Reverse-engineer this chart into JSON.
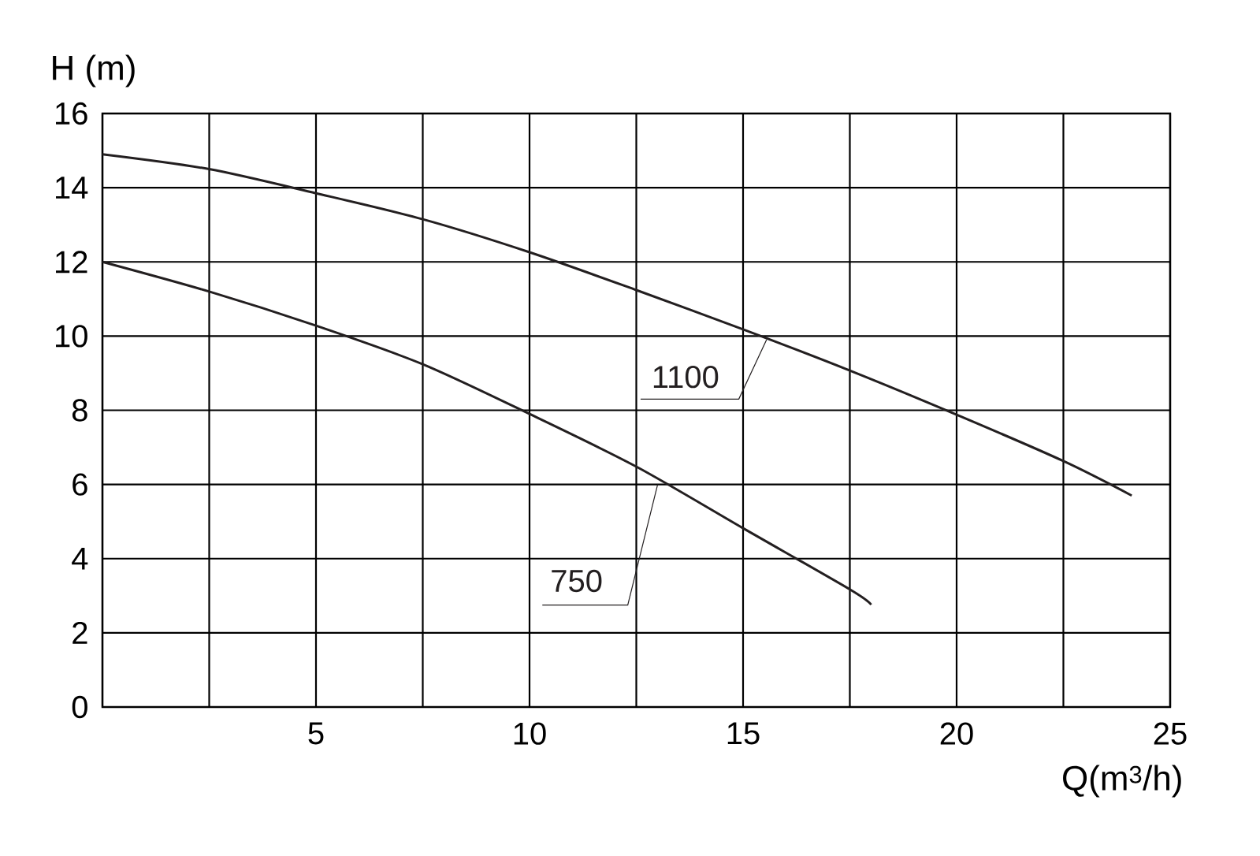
{
  "chart_data": {
    "type": "line",
    "xlabel": "Q(m$^{3}$/h)",
    "ylabel": "H (m)",
    "xlim": [
      0,
      25
    ],
    "ylim": [
      0,
      16
    ],
    "xticks": [
      {
        "value": 0,
        "label": null
      },
      {
        "value": 2.5,
        "label": null
      },
      5,
      {
        "value": 7.5,
        "label": null
      },
      10,
      {
        "value": 12.5,
        "label": null
      },
      15,
      {
        "value": 17.5,
        "label": null
      },
      20,
      {
        "value": 22.5,
        "label": null
      },
      25
    ],
    "yticks": [
      0,
      2,
      4,
      6,
      8,
      10,
      12,
      14,
      16
    ],
    "grid": true,
    "marker": "none",
    "line_style": "solid",
    "series": [
      {
        "name": "1100",
        "color": "#231f20",
        "x": [
          0,
          2.5,
          5,
          7.5,
          10,
          12.5,
          15,
          17.5,
          20,
          22.5,
          24.1
        ],
        "values": [
          14.9,
          14.5,
          13.85,
          13.15,
          12.26,
          11.24,
          10.18,
          9.07,
          7.88,
          6.63,
          5.7
        ]
      },
      {
        "name": "750",
        "color": "#231f20",
        "x": [
          0,
          2.5,
          5,
          7.5,
          10,
          12.5,
          15,
          17.5,
          18
        ],
        "values": [
          12.0,
          11.2,
          10.28,
          9.24,
          7.9,
          6.48,
          4.82,
          3.17,
          2.76
        ]
      }
    ]
  }
}
